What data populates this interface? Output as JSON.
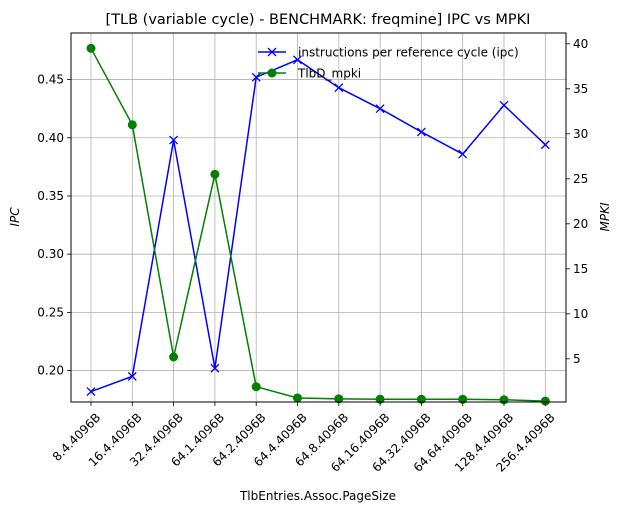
{
  "chart_data": {
    "type": "line",
    "title": "[TLB (variable cycle) - BENCHMARK: freqmine]  IPC vs MPKI",
    "xlabel": "TlbEntries.Assoc.PageSize",
    "ylabel_left": "IPC",
    "ylabel_right": "MPKI",
    "categories": [
      "8.4.4096B",
      "16.4.4096B",
      "32.4.4096B",
      "64.1.4096B",
      "64.2.4096B",
      "64.4.4096B",
      "64.8.4096B",
      "64.16.4096B",
      "64.32.4096B",
      "64.64.4096B",
      "128.4.4096B",
      "256.4.4096B"
    ],
    "ylim_left": [
      0.173,
      0.49
    ],
    "ylim_right": [
      0.2,
      41.2
    ],
    "yticks_left": [
      "0.20",
      "0.25",
      "0.30",
      "0.35",
      "0.40",
      "0.45"
    ],
    "yticks_right": [
      "5",
      "10",
      "15",
      "20",
      "25",
      "30",
      "35",
      "40"
    ],
    "grid": true,
    "legend_position": "top-right",
    "series": [
      {
        "name": "instructions per reference cycle (ipc)",
        "axis": "left",
        "color": "#0000ff",
        "marker": "x",
        "values": [
          0.182,
          0.195,
          0.398,
          0.202,
          0.452,
          0.467,
          0.443,
          0.425,
          0.405,
          0.386,
          0.428,
          0.394
        ]
      },
      {
        "name": "TlbD_mpki",
        "axis": "right",
        "color": "#008000",
        "marker": "o",
        "values": [
          39.5,
          31.0,
          5.2,
          25.5,
          1.9,
          0.65,
          0.55,
          0.5,
          0.5,
          0.5,
          0.45,
          0.3
        ]
      }
    ]
  }
}
